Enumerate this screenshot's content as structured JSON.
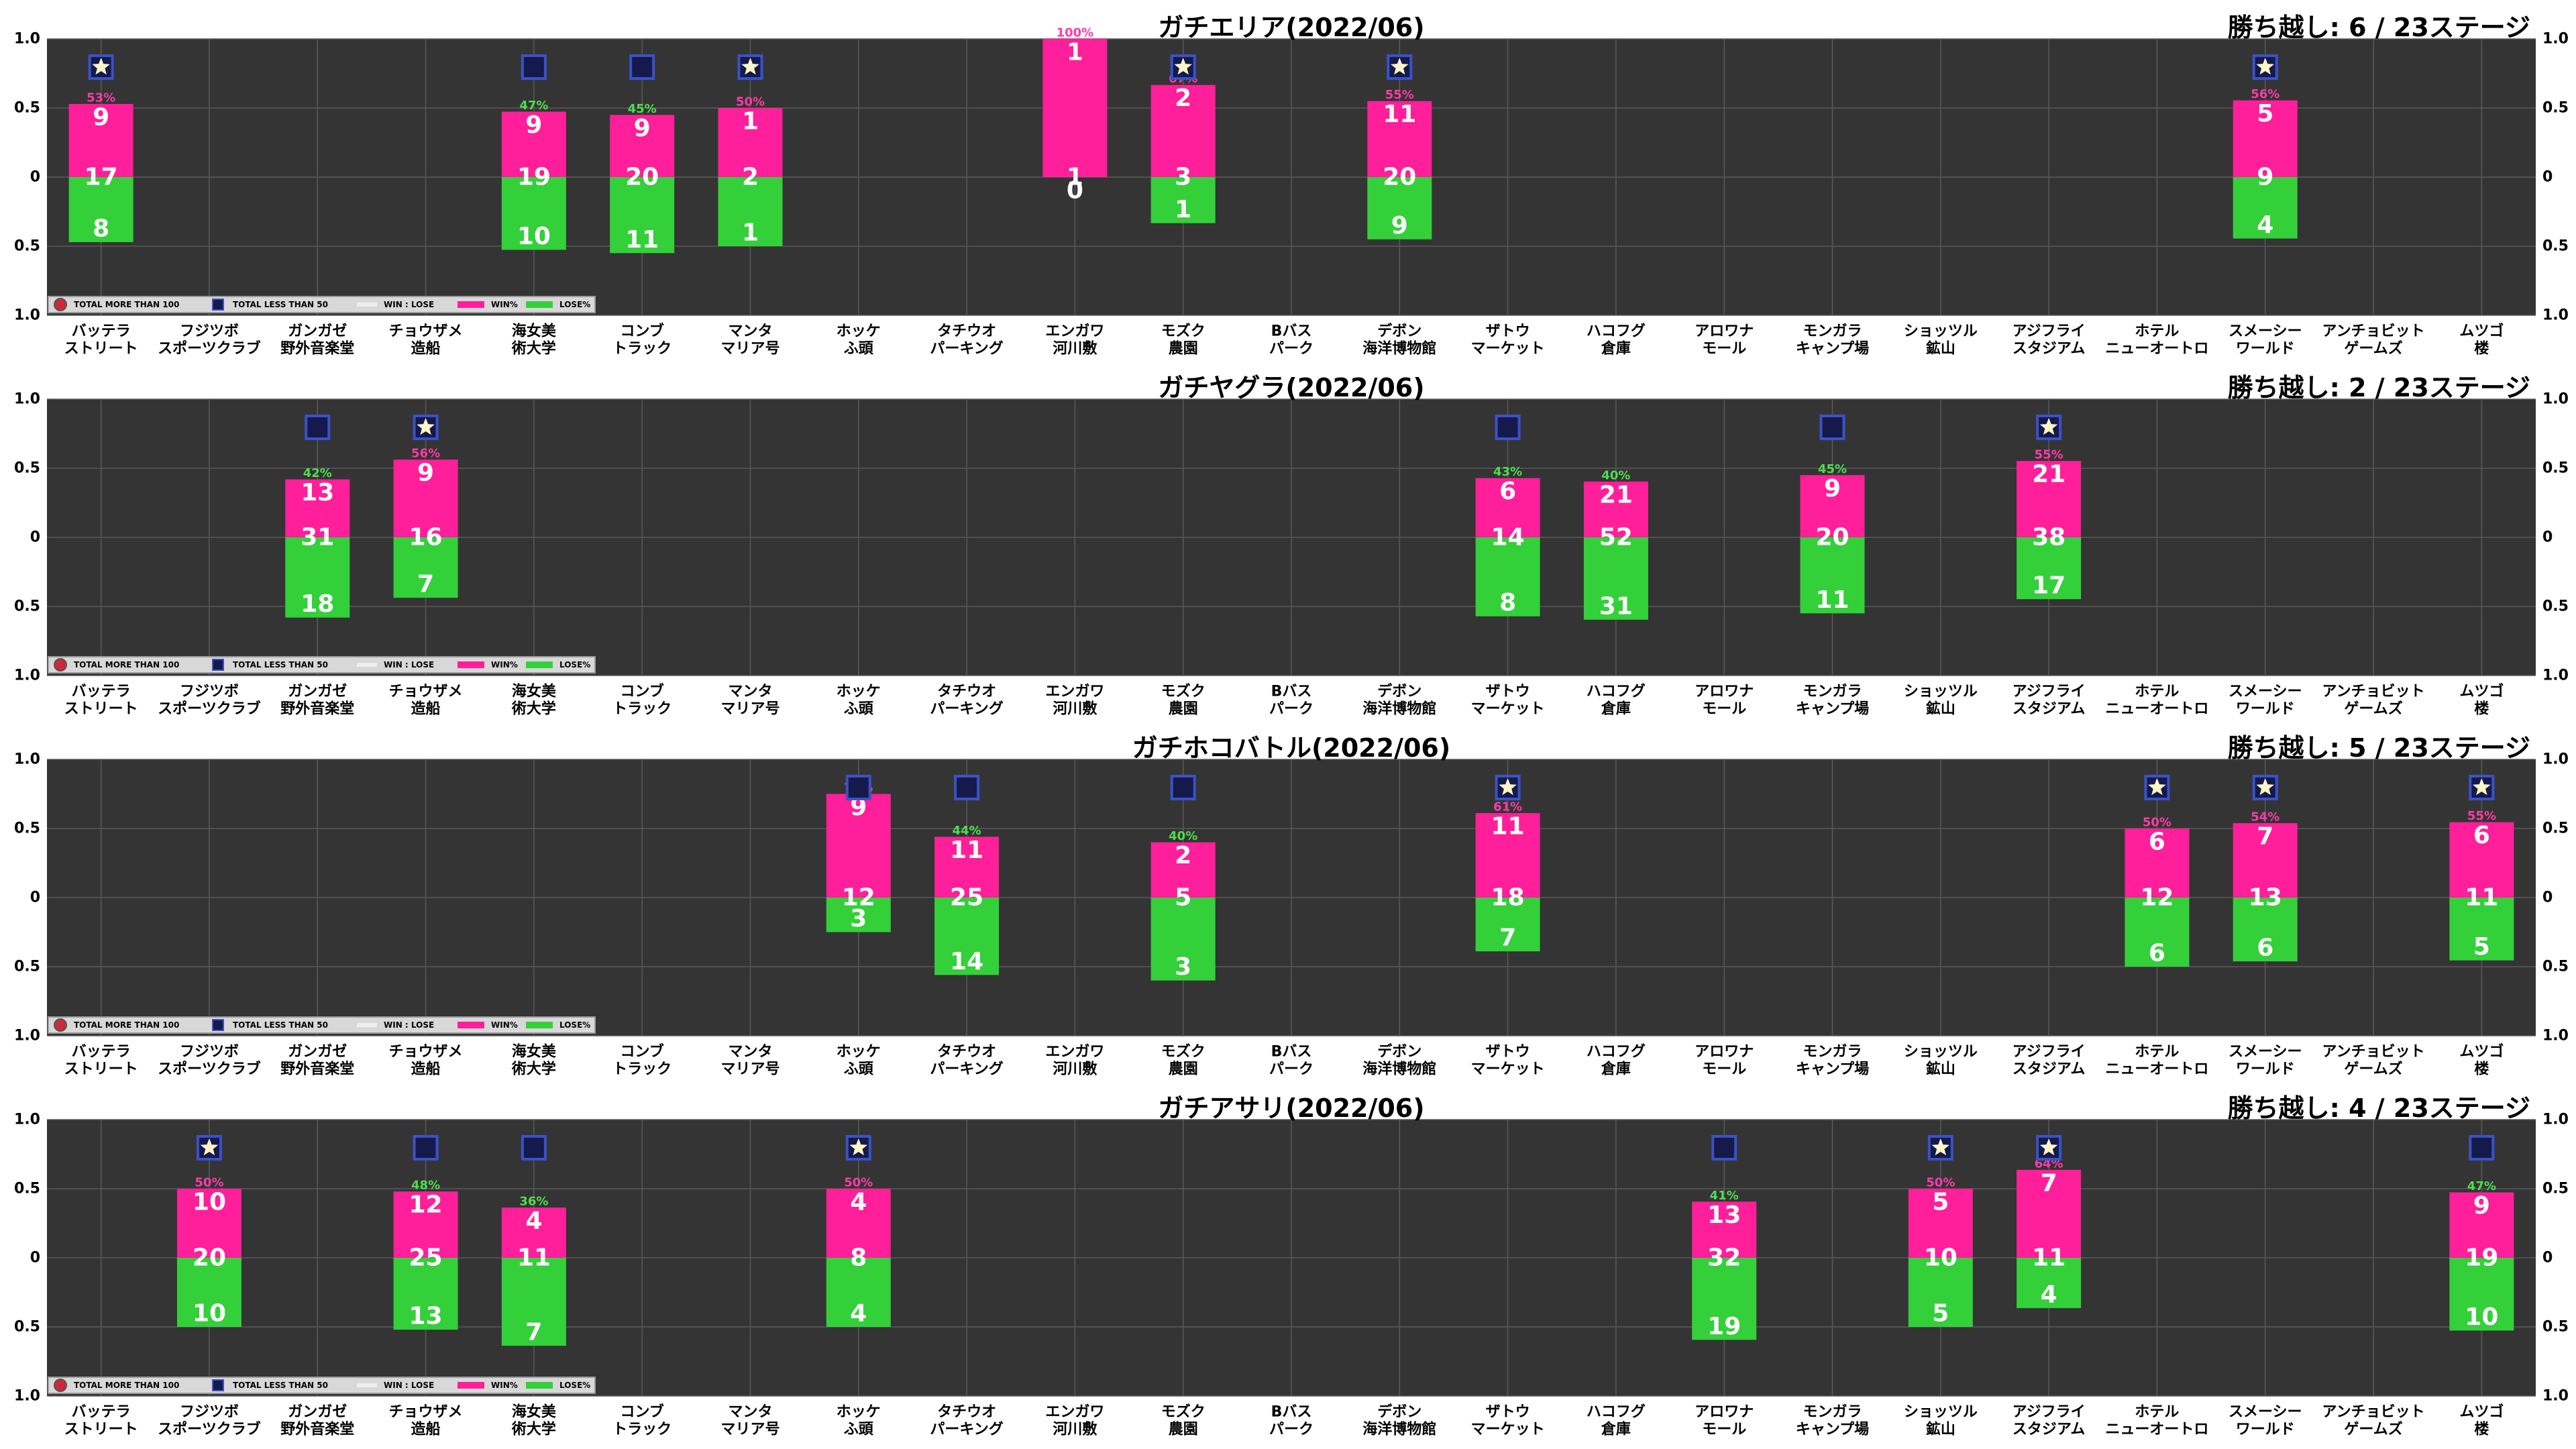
{
  "stages": [
    "バッテラ\nストリート",
    "フジツボ\nスポーツクラブ",
    "ガンガゼ\n野外音楽堂",
    "チョウザメ\n造船",
    "海女美\n術大学",
    "コンブ\nトラック",
    "マンタ\nマリア号",
    "ホッケ\nふ頭",
    "タチウオ\nパーキング",
    "エンガワ\n河川敷",
    "モズク\n農園",
    "Bバス\nパーク",
    "デボン\n海洋博物館",
    "ザトウ\nマーケット",
    "ハコフグ\n倉庫",
    "アロワナ\nモール",
    "モンガラ\nキャンプ場",
    "ショッツル\n鉱山",
    "アジフライ\nスタジアム",
    "ホテル\nニューオートロ",
    "スメーシー\nワールド",
    "アンチョビット\nゲームズ",
    "ムツゴ\n楼"
  ],
  "legend": {
    "more100": "TOTAL MORE THAN 100",
    "less50": "TOTAL LESS THAN 50",
    "winlose": "WIN : LOSE",
    "win": "WIN%",
    "lose": "LOSE%"
  },
  "colors": {
    "background": "#343434",
    "grid": "#5a5a5a",
    "win": "#ff1f9a",
    "lose": "#33d03a",
    "marker_fill": "#161a4a",
    "marker_edge": "#3a52c8",
    "star": "#fff6c8",
    "pct_win": "#ff3aa8",
    "pct_lose": "#4ce04c"
  },
  "chart_data": [
    {
      "type": "bar",
      "title": "ガチエリア(2022/06)",
      "summary": "勝ち越し: 6 / 23ステージ",
      "y_left_ticks": [
        "1.0",
        "0.5",
        "0",
        "0.5",
        "1.0"
      ],
      "y_right_ticks": [
        "1.0",
        "0.5",
        "0",
        "0.5",
        "1.0"
      ],
      "ylim": [
        -1,
        1
      ],
      "entries": [
        {
          "stage": 0,
          "win": 9,
          "lose": 8,
          "total": 17,
          "pct": "53%",
          "marker": "star"
        },
        {
          "stage": 4,
          "win": 9,
          "lose": 10,
          "total": 19,
          "pct": "47%",
          "marker": "square"
        },
        {
          "stage": 5,
          "win": 9,
          "lose": 11,
          "total": 20,
          "pct": "45%",
          "marker": "square"
        },
        {
          "stage": 6,
          "win": 1,
          "lose": 1,
          "total": 2,
          "pct": "50%",
          "marker": "star"
        },
        {
          "stage": 9,
          "win": 1,
          "lose": 0,
          "total": 1,
          "pct": "100%",
          "marker": "none"
        },
        {
          "stage": 10,
          "win": 2,
          "lose": 1,
          "total": 3,
          "pct": "67%",
          "marker": "star"
        },
        {
          "stage": 12,
          "win": 11,
          "lose": 9,
          "total": 20,
          "pct": "55%",
          "marker": "star"
        },
        {
          "stage": 20,
          "win": 5,
          "lose": 4,
          "total": 9,
          "pct": "56%",
          "marker": "star"
        }
      ]
    },
    {
      "type": "bar",
      "title": "ガチヤグラ(2022/06)",
      "summary": "勝ち越し: 2 / 23ステージ",
      "y_left_ticks": [
        "1.0",
        "0.5",
        "0",
        "0.5",
        "1.0"
      ],
      "y_right_ticks": [
        "1.0",
        "0.5",
        "0",
        "0.5",
        "1.0"
      ],
      "ylim": [
        -1,
        1
      ],
      "entries": [
        {
          "stage": 2,
          "win": 13,
          "lose": 18,
          "total": 31,
          "pct": "42%",
          "marker": "square"
        },
        {
          "stage": 3,
          "win": 9,
          "lose": 7,
          "total": 16,
          "pct": "56%",
          "marker": "star"
        },
        {
          "stage": 13,
          "win": 6,
          "lose": 8,
          "total": 14,
          "pct": "43%",
          "marker": "square"
        },
        {
          "stage": 14,
          "win": 21,
          "lose": 31,
          "total": 52,
          "pct": "40%",
          "marker": "none"
        },
        {
          "stage": 16,
          "win": 9,
          "lose": 11,
          "total": 20,
          "pct": "45%",
          "marker": "square"
        },
        {
          "stage": 18,
          "win": 21,
          "lose": 17,
          "total": 38,
          "pct": "55%",
          "marker": "star"
        }
      ]
    },
    {
      "type": "bar",
      "title": "ガチホコバトル(2022/06)",
      "summary": "勝ち越し: 5 / 23ステージ",
      "y_left_ticks": [
        "1.0",
        "0.5",
        "0",
        "0.5",
        "1.0"
      ],
      "y_right_ticks": [
        "1.0",
        "0.5",
        "0",
        "0.5",
        "1.0"
      ],
      "ylim": [
        -1,
        1
      ],
      "entries": [
        {
          "stage": 7,
          "win": 9,
          "lose": 3,
          "total": 12,
          "pct": "75%",
          "marker": "square"
        },
        {
          "stage": 8,
          "win": 11,
          "lose": 14,
          "total": 25,
          "pct": "44%",
          "marker": "square"
        },
        {
          "stage": 10,
          "win": 2,
          "lose": 3,
          "total": 5,
          "pct": "40%",
          "marker": "square"
        },
        {
          "stage": 13,
          "win": 11,
          "lose": 7,
          "total": 18,
          "pct": "61%",
          "marker": "star"
        },
        {
          "stage": 19,
          "win": 6,
          "lose": 6,
          "total": 12,
          "pct": "50%",
          "marker": "star"
        },
        {
          "stage": 20,
          "win": 7,
          "lose": 6,
          "total": 13,
          "pct": "54%",
          "marker": "star"
        },
        {
          "stage": 22,
          "win": 6,
          "lose": 5,
          "total": 11,
          "pct": "55%",
          "marker": "star"
        }
      ]
    },
    {
      "type": "bar",
      "title": "ガチアサリ(2022/06)",
      "summary": "勝ち越し: 4 / 23ステージ",
      "y_left_ticks": [
        "1.0",
        "0.5",
        "0",
        "0.5",
        "1.0"
      ],
      "y_right_ticks": [
        "1.0",
        "0.5",
        "0",
        "0.5",
        "1.0"
      ],
      "ylim": [
        -1,
        1
      ],
      "entries": [
        {
          "stage": 1,
          "win": 10,
          "lose": 10,
          "total": 20,
          "pct": "50%",
          "marker": "star"
        },
        {
          "stage": 3,
          "win": 12,
          "lose": 13,
          "total": 25,
          "pct": "48%",
          "marker": "square"
        },
        {
          "stage": 4,
          "win": 4,
          "lose": 7,
          "total": 11,
          "pct": "36%",
          "marker": "square"
        },
        {
          "stage": 7,
          "win": 4,
          "lose": 4,
          "total": 8,
          "pct": "50%",
          "marker": "star"
        },
        {
          "stage": 15,
          "win": 13,
          "lose": 19,
          "total": 32,
          "pct": "41%",
          "marker": "square"
        },
        {
          "stage": 17,
          "win": 5,
          "lose": 5,
          "total": 10,
          "pct": "50%",
          "marker": "star"
        },
        {
          "stage": 18,
          "win": 7,
          "lose": 4,
          "total": 11,
          "pct": "64%",
          "marker": "star"
        },
        {
          "stage": 22,
          "win": 9,
          "lose": 10,
          "total": 19,
          "pct": "47%",
          "marker": "square"
        }
      ]
    }
  ]
}
